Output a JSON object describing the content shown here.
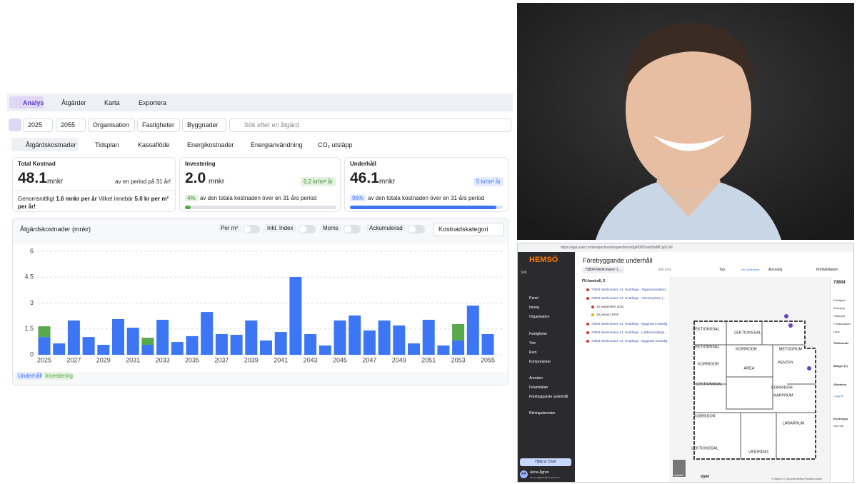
{
  "nav": {
    "tabs": [
      "Analys",
      "Åtgärder",
      "Karta",
      "Exportera"
    ]
  },
  "filters": {
    "items": [
      "2025",
      "2055",
      "Organisation",
      "Fastigheter",
      "Byggnader"
    ],
    "search": "Sök efter en åtgärd"
  },
  "subtabs": [
    "Åtgärdskostnader",
    "Tidsplan",
    "Kassaflöde",
    "Energikostnader",
    "Energianvändning",
    "CO₂ utsläpp"
  ],
  "cards": [
    {
      "title": "Total Kostnad",
      "value": "48.1",
      "unit": "mnkr",
      "note": "av en period på 31 år!",
      "footer": [
        "Genomsnittligt ",
        "1.6 mnkr per år",
        " Vilket innebär ",
        "5.0 kr per m² per år!"
      ]
    },
    {
      "title": "Investering",
      "value": "2.0",
      "unit": "mnkr",
      "badge": "0.2 kr/m² år",
      "share": 4,
      "share_label": "4%",
      "share_text": "av den totala kostnaden över en 31-års period"
    },
    {
      "title": "Underhåll",
      "value": "46.1",
      "unit": "mnkr",
      "badge": "5 kr/m² år",
      "share": 96,
      "share_label": "96%",
      "share_text": "av den totala kostnaden över en 31-års period"
    }
  ],
  "chart_controls": {
    "toggles": [
      "Per m²",
      "Inkl. Index",
      "Moms",
      "Ackumulerad"
    ],
    "dropdown": "Kostnadskategori"
  },
  "chart_data": {
    "type": "bar",
    "stacked": true,
    "title": "Åtgärdskostnader (mnkr)",
    "categories": [
      "2025",
      null,
      "2027",
      null,
      "2029",
      null,
      "2031",
      null,
      "2033",
      null,
      "2035",
      null,
      "2037",
      null,
      "2039",
      null,
      "2041",
      null,
      "2043",
      null,
      "2045",
      null,
      "2047",
      null,
      "2049",
      null,
      "2051",
      null,
      "2053",
      null,
      "2055"
    ],
    "series": [
      {
        "name": "Underhåll",
        "color": "#3d76f4",
        "values": [
          1.03,
          0.66,
          1.99,
          1.03,
          0.58,
          2.07,
          1.57,
          0.58,
          2.03,
          0.74,
          1.08,
          2.48,
          1.2,
          1.16,
          1.99,
          0.83,
          1.32,
          4.51,
          1.2,
          0.54,
          1.99,
          2.28,
          1.41,
          1.99,
          1.7,
          0.66,
          2.03,
          0.54,
          0.83,
          2.85,
          1.2
        ]
      },
      {
        "name": "Investering",
        "color": "#58a84c",
        "values": [
          0.62,
          0,
          0,
          0,
          0,
          0,
          0,
          0.41,
          0,
          0,
          0,
          0,
          0,
          0,
          0,
          0,
          0,
          0,
          0,
          0,
          0,
          0,
          0,
          0,
          0,
          0,
          0,
          0,
          0.95,
          0,
          0
        ]
      }
    ],
    "ylim": [
      0,
      6
    ],
    "yticks": [
      0,
      1.5,
      3,
      4.5,
      6
    ],
    "grid": true
  },
  "app": {
    "url": "https://app.vyer.com/inspections/inspection/o6g9f0f2f2am5a88Cg0CXF",
    "logo": "HEMSÖ",
    "search": "Sök",
    "menu": [
      "Panel",
      "Inkorg",
      "Organisation",
      "Fastigheter",
      "Ytor",
      "Rum",
      "Komponenter",
      "Ärenden",
      "Felanmälan",
      "Förebyggande underhåll",
      "Ritningsärenden"
    ],
    "help": "Hjälp & Chatt",
    "user_initials": "AA",
    "user": "Anna Ågren",
    "email": "anna.agren@hemso.se",
    "heading": "Förebyggande underhåll",
    "filter": "73804 Medicinaren 1...",
    "list_search": "Sök lista",
    "toolbar": [
      "Typ",
      "Visa avfärdade",
      "Ansvarig",
      "Förfallodatum"
    ],
    "group": "FU-kontroll, 5",
    "rows": [
      "73804 Medicinaren 14, Huddinge - Tappvarmvattens...",
      "73804 Medicinaren 14, Huddinge - Värmesystem (...",
      "10 september 2024",
      "10 januari 2025",
      "73804 Medicinaren 14, Huddinge - Byggnad invändig",
      "73804 Medicinaren 14, Huddinge - Luftbehandlings...",
      "73804 Medicinaren 14, Huddinge - Byggnad utvändig"
    ],
    "rooms": [
      "LEKTIONSSAL",
      "LEKTIONSSAL",
      "LEKTIONSSAL",
      "KORRIDOR",
      "METODRUM",
      "KORRIDOR",
      "AREA",
      "PENTRY",
      "LEKTIONSSAL",
      "KORRIDOR",
      "KAPPRUM",
      "KORRIDOR",
      "LÄRARRUM",
      "LEKTIONSSAL",
      "VINDFÅNG"
    ],
    "detail_title": "73804",
    "detail": [
      "Fastighet",
      "Ansvarig",
      "Påbörjad",
      "Förfallodatum",
      "Länk",
      "Tillhörande",
      "Bilagor (0)",
      "Allmänna",
      "Lägg till",
      "Kontrollpu",
      "Den här"
    ],
    "satellite": "Satellit",
    "brand": "vyer",
    "attribution": "© Mapbox © OpenStreetMap Förbättra kartan"
  }
}
